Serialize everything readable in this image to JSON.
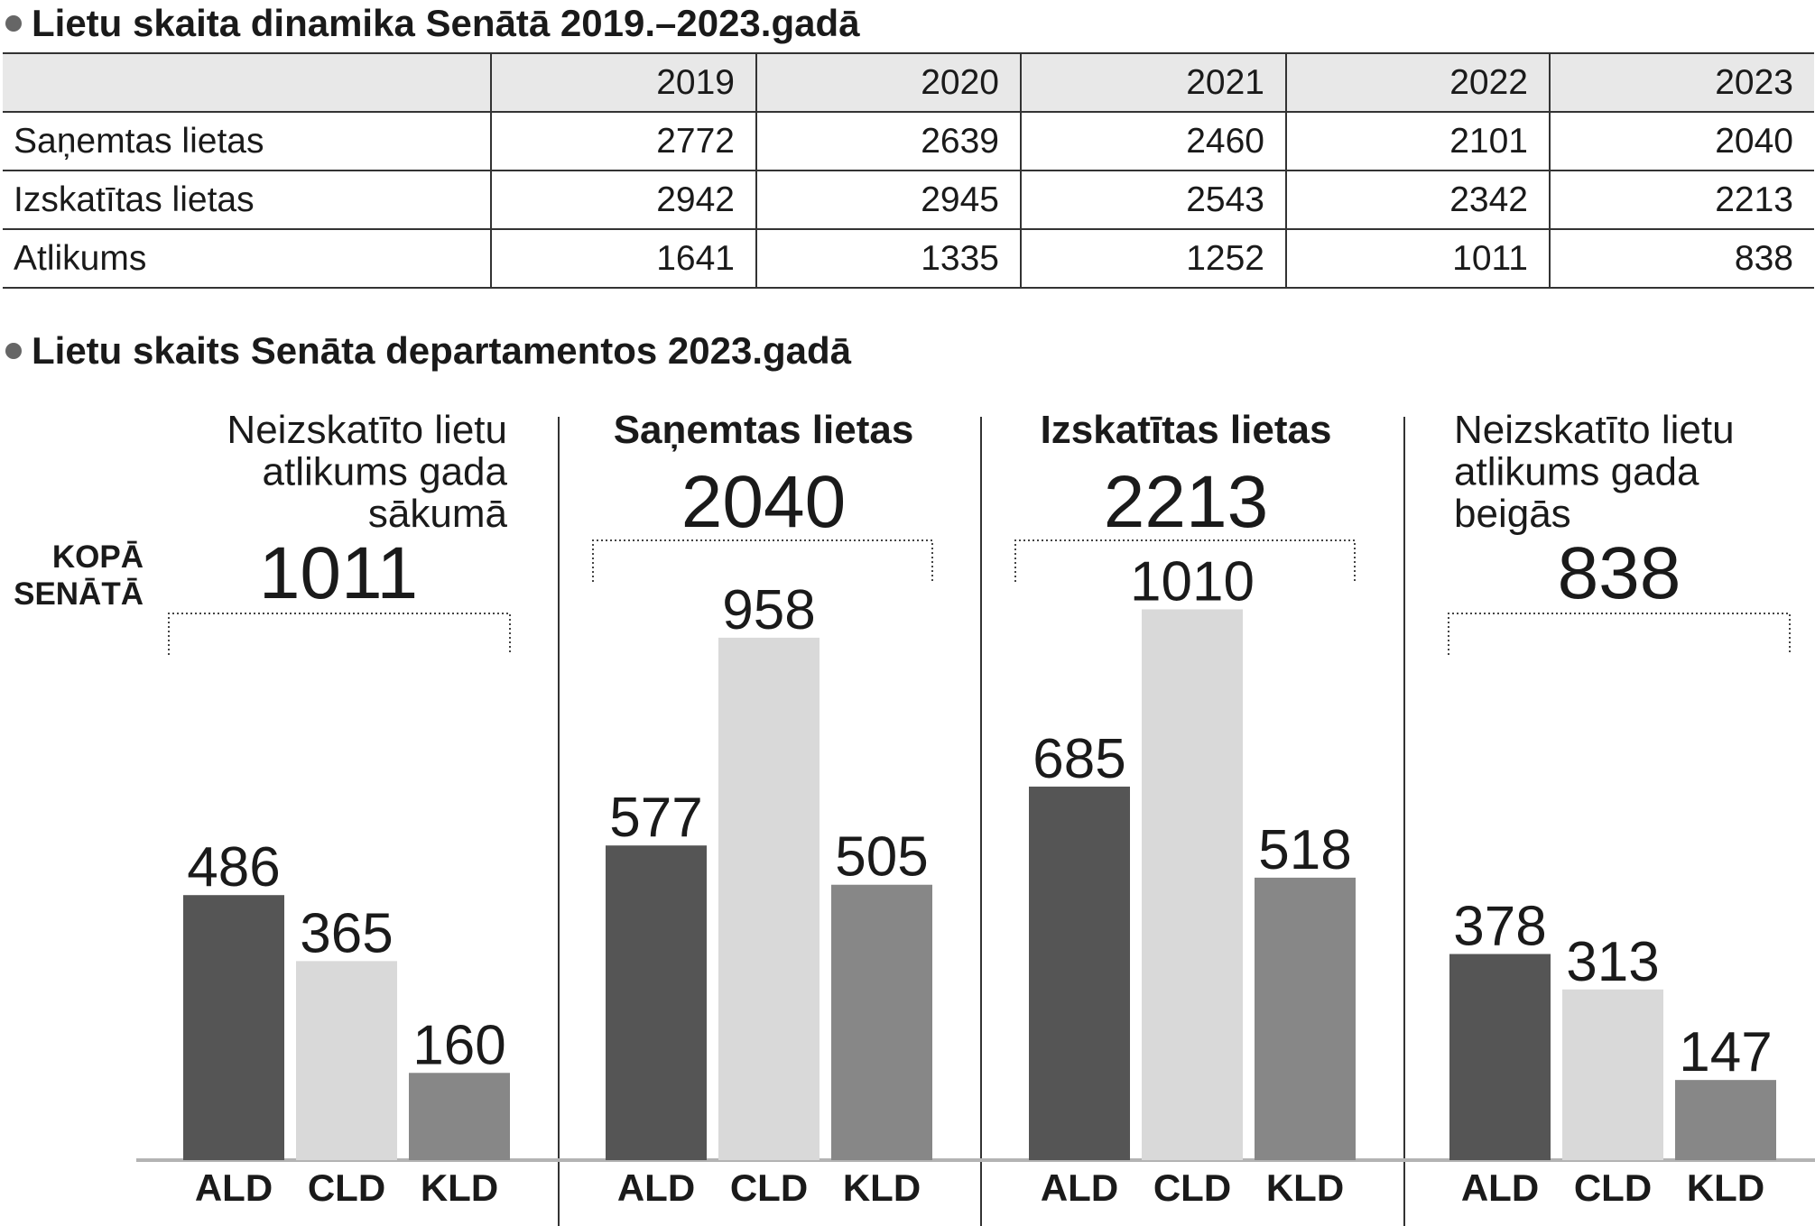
{
  "chart_section": {
    "title": "Lietu skaits Senāta departamentos 2023.gadā",
    "total_row_label_lines": [
      "KOPĀ",
      "SENĀTĀ"
    ]
  },
  "colors": {
    "bullet": "#666666",
    "header_background": "#e8e8e8",
    "ALD": "#555555",
    "CLD": "#d9d9d9",
    "KLD": "#878787"
  },
  "chart_data": [
    {
      "type": "table",
      "title": "Lietu skaita dinamika Senātā 2019.–2023.gadā",
      "columns": [
        "2019",
        "2020",
        "2021",
        "2022",
        "2023"
      ],
      "rows": [
        {
          "label": "Saņemtas lietas",
          "values": [
            2772,
            2639,
            2460,
            2101,
            2040
          ]
        },
        {
          "label": "Izskatītas lietas",
          "values": [
            2942,
            2945,
            2543,
            2342,
            2213
          ]
        },
        {
          "label": "Atlikums",
          "values": [
            1641,
            1335,
            1252,
            1011,
            838
          ]
        }
      ]
    },
    {
      "type": "bar",
      "title_lines": [
        "Neizskatīto lietu",
        "atlikums gada",
        "sākumā"
      ],
      "total": 1011,
      "categories": [
        "ALD",
        "CLD",
        "KLD"
      ],
      "values": [
        486,
        365,
        160
      ]
    },
    {
      "type": "bar",
      "title_lines": [
        "Saņemtas lietas"
      ],
      "total": 2040,
      "categories": [
        "ALD",
        "CLD",
        "KLD"
      ],
      "values": [
        577,
        958,
        505
      ]
    },
    {
      "type": "bar",
      "title_lines": [
        "Izskatītas lietas"
      ],
      "total": 2213,
      "categories": [
        "ALD",
        "CLD",
        "KLD"
      ],
      "values": [
        685,
        1010,
        518
      ]
    },
    {
      "type": "bar",
      "title_lines": [
        "Neizskatīto lietu",
        "atlikums gada",
        "beigās"
      ],
      "total": 838,
      "categories": [
        "ALD",
        "CLD",
        "KLD"
      ],
      "values": [
        378,
        313,
        147
      ]
    }
  ]
}
